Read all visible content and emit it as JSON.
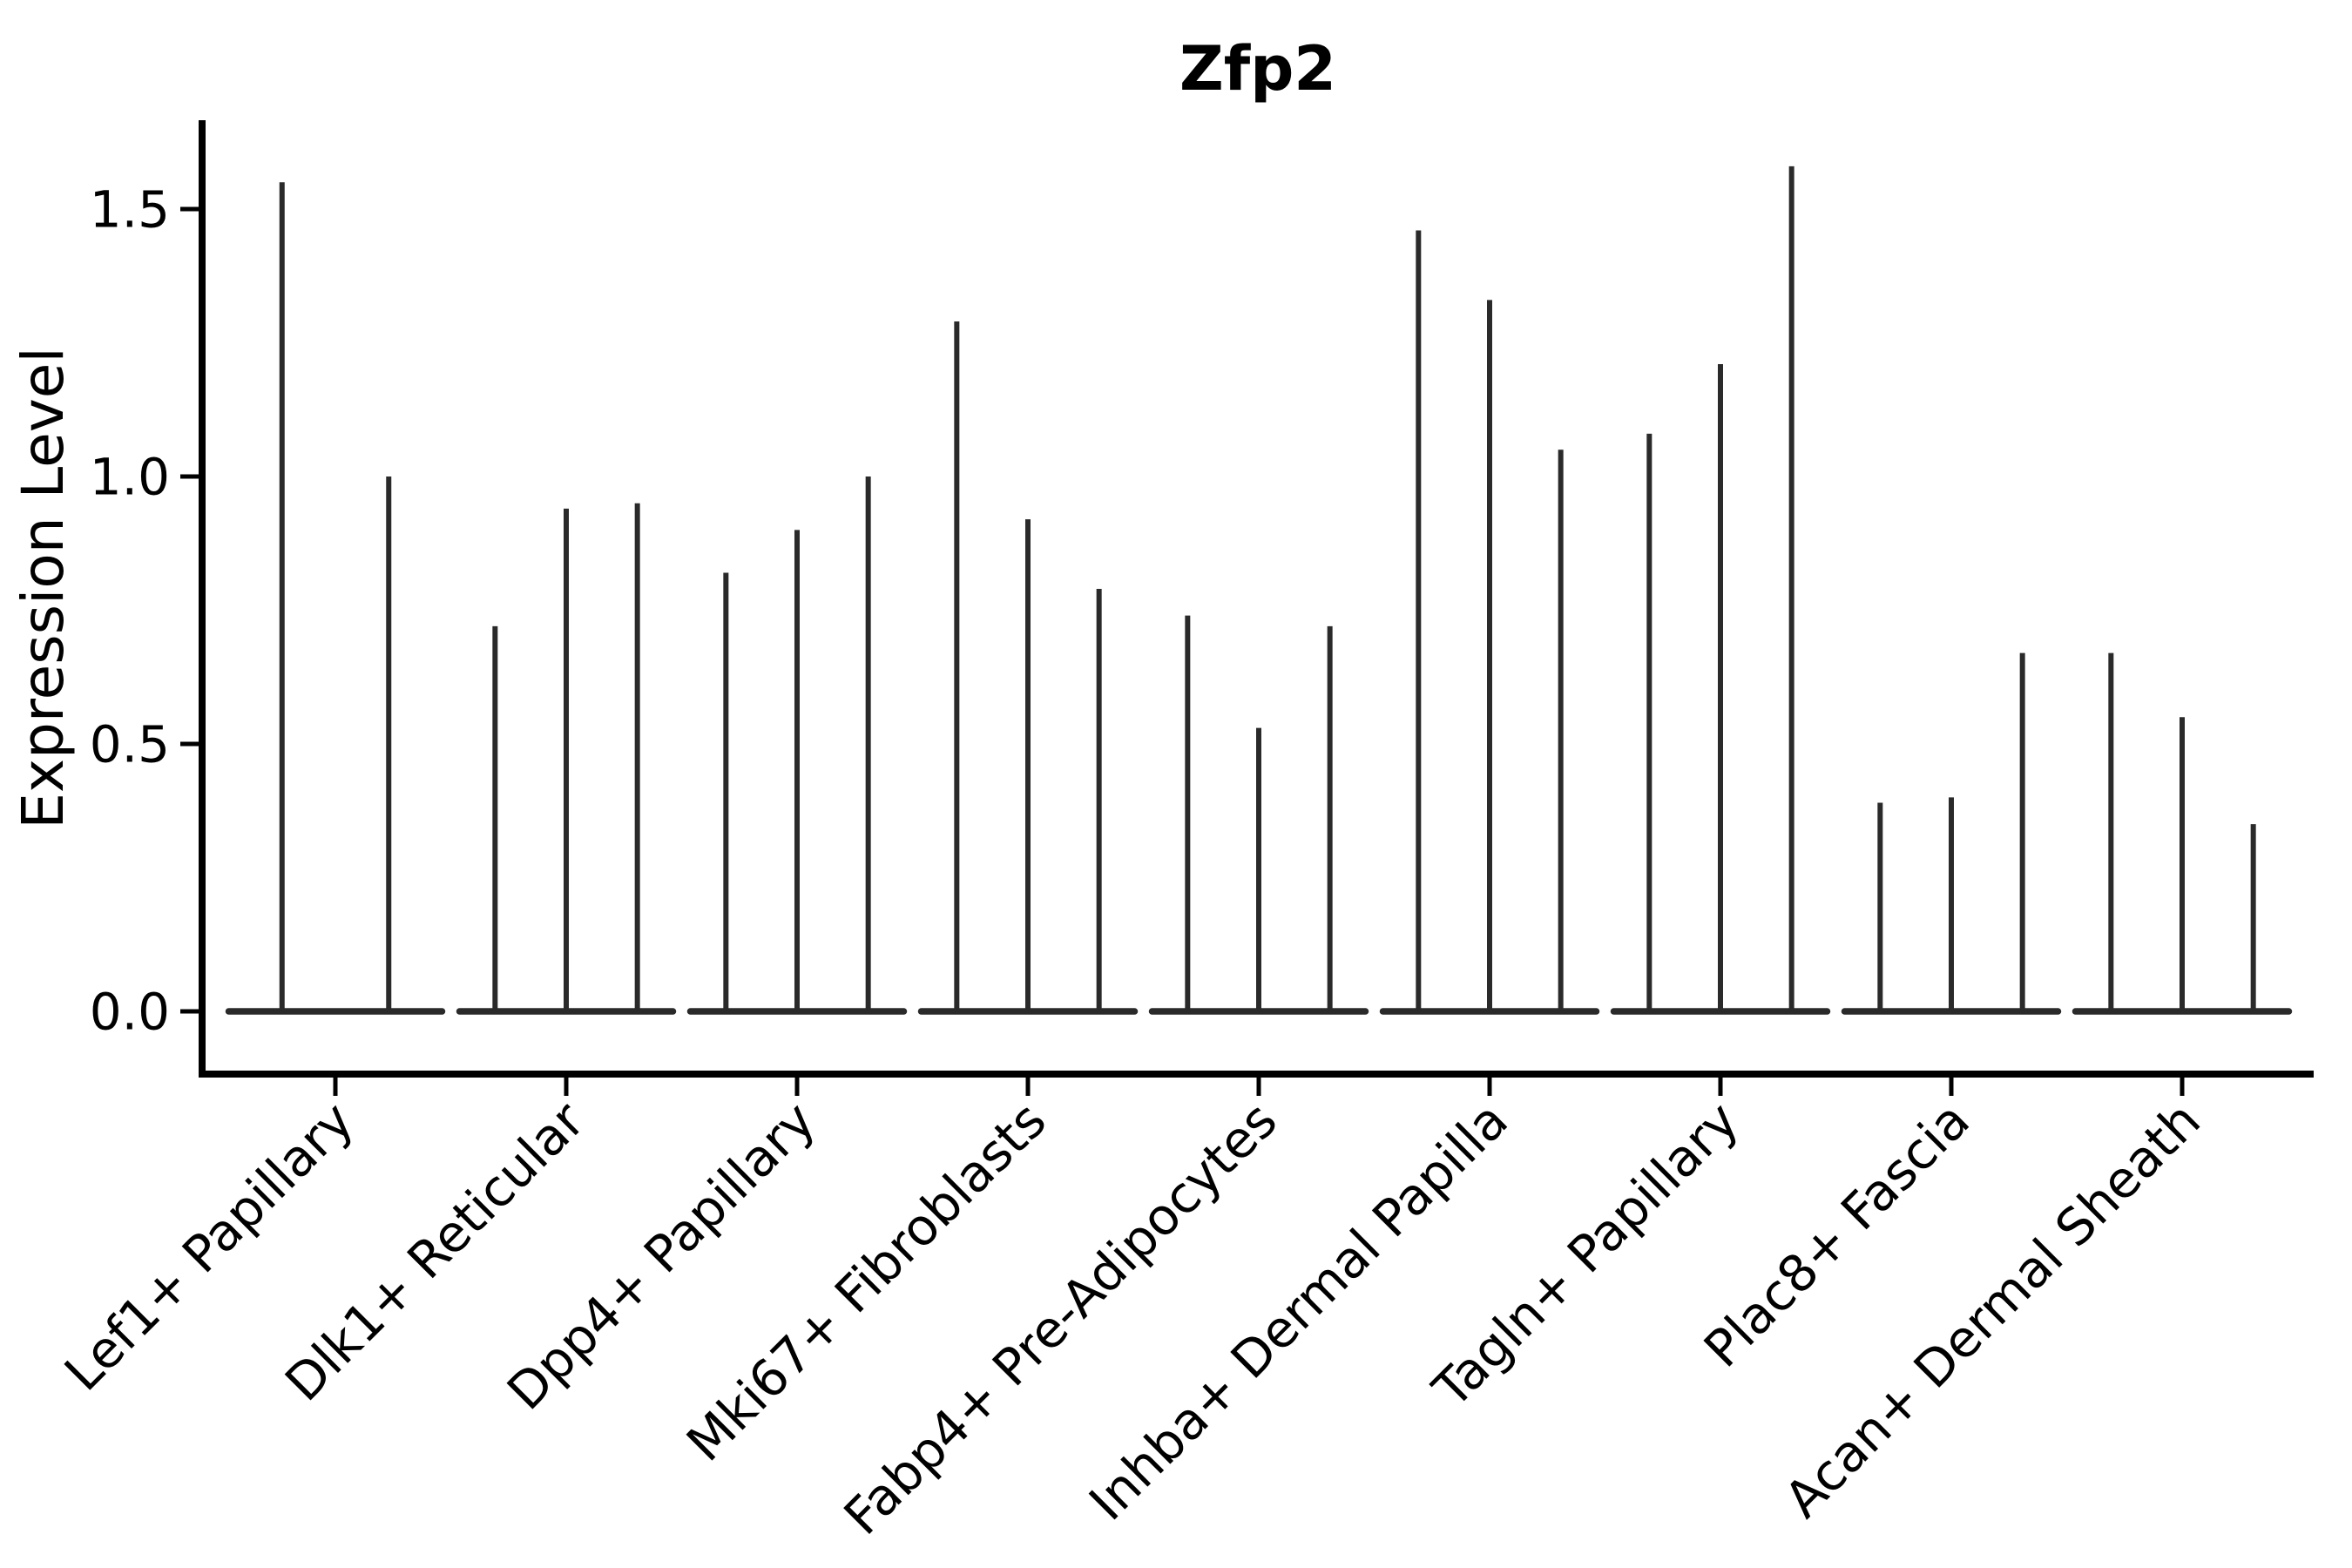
{
  "chart_data": {
    "type": "violin",
    "title": "Zfp2",
    "xlabel": "",
    "ylabel": "Expression Level",
    "y_ticks": [
      "0.0",
      "0.5",
      "1.0",
      "1.5"
    ],
    "y_tick_values": [
      0.0,
      0.5,
      1.0,
      1.5
    ],
    "ylim": [
      -0.12,
      1.67
    ],
    "grid": false,
    "legend": "none",
    "categories": [
      "Lef1+ Papillary",
      "Dlk1+ Reticular",
      "Dpp4+ Papillary",
      "Mki67+ Fibroblasts",
      "Fabp4+ Pre-Adipocytes",
      "Inhba+ Dermal Papilla",
      "Tagln+ Papillary",
      "Plac8+ Fascia",
      "Acan+ Dermal Sheath"
    ],
    "violin_baseline_value": 0.0,
    "violin_max_heights": [
      [
        1.55,
        1.0
      ],
      [
        0.72,
        0.94,
        0.95
      ],
      [
        0.82,
        0.9,
        1.0
      ],
      [
        1.29,
        0.92,
        0.79
      ],
      [
        0.74,
        0.53,
        0.72
      ],
      [
        1.46,
        1.33,
        1.05
      ],
      [
        1.08,
        1.21,
        1.58
      ],
      [
        0.39,
        0.4,
        0.67
      ],
      [
        0.67,
        0.55,
        0.35
      ]
    ],
    "colors": {
      "violin": "#2a2a2a",
      "axis": "#000000",
      "text": "#000000",
      "background": "#ffffff"
    }
  }
}
